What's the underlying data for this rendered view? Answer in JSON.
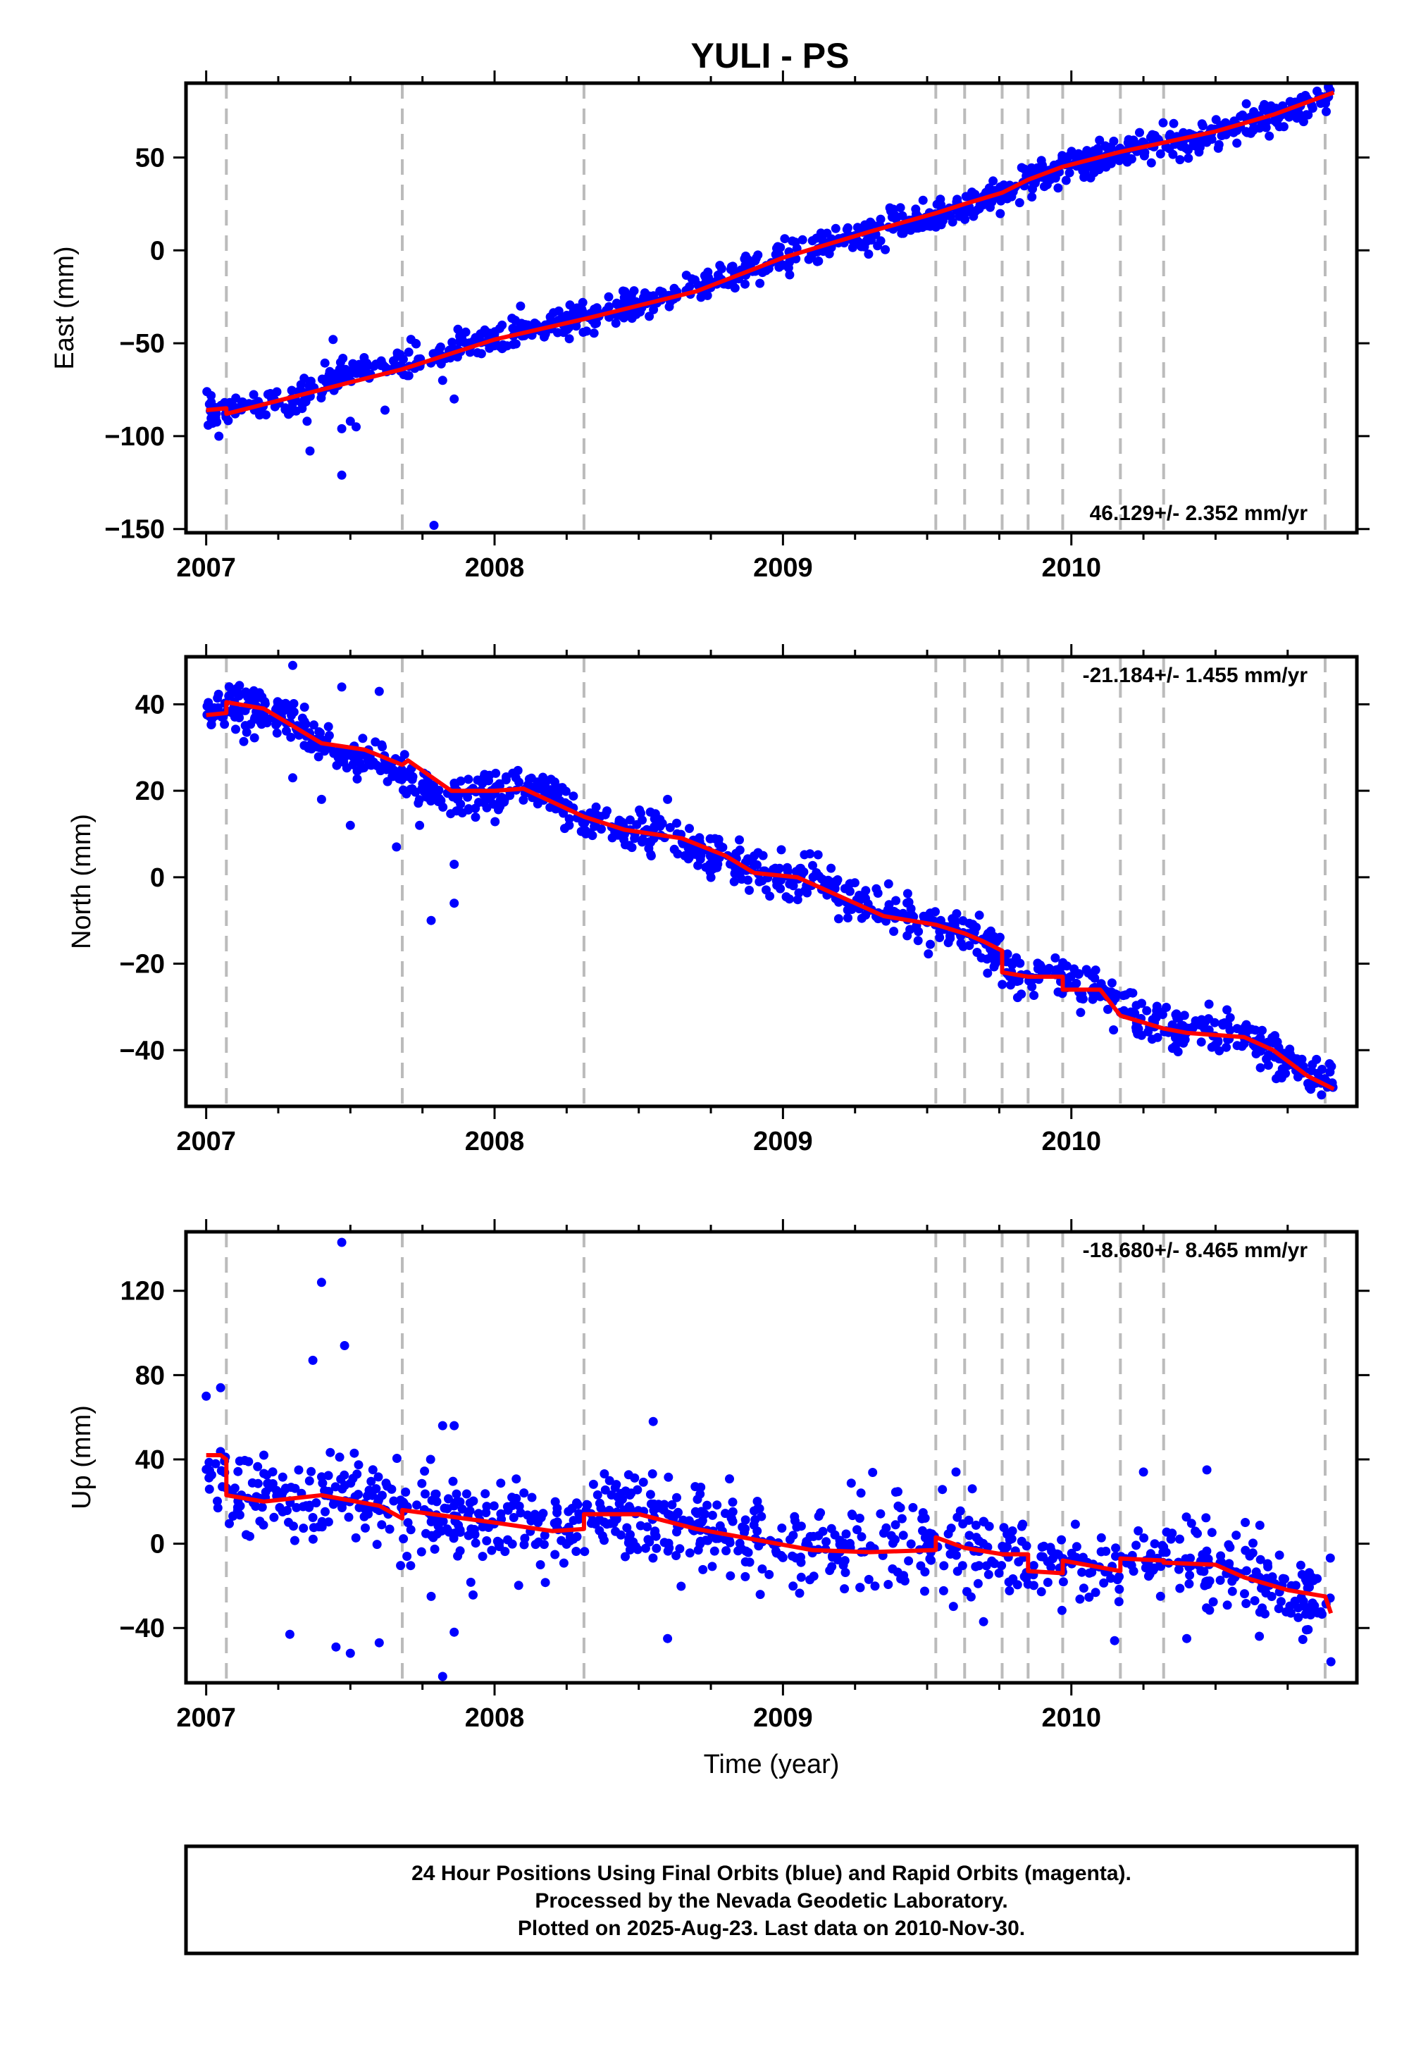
{
  "title": "YULI - PS",
  "footer": {
    "line1": "24 Hour Positions Using Final Orbits (blue) and Rapid Orbits (magenta).",
    "line2": "Processed by the Nevada Geodetic Laboratory.",
    "line3": "Plotted on 2025-Aug-23. Last data on 2010-Nov-30."
  },
  "colors": {
    "points": "#0000ff",
    "model": "#ff0000",
    "steps": "#bbbbbb",
    "frame": "#000000"
  },
  "chart_data": [
    {
      "type": "scatter",
      "ylabel": "East (mm)",
      "xlabel": "",
      "rate": "46.129+/- 2.352 mm/yr",
      "rate_position": "bottom-right",
      "xlim": [
        2006.93,
        2010.99
      ],
      "ylim": [
        -152,
        90
      ],
      "yticks": [
        -150,
        -100,
        -50,
        0,
        50
      ],
      "ytick_labels": [
        "−150",
        "−100",
        "−50",
        "0",
        "50"
      ],
      "xticks": [
        2007,
        2008,
        2009,
        2010
      ],
      "xtick_labels": [
        "2007",
        "2008",
        "2009",
        "2010"
      ],
      "steps": [
        2007.07,
        2007.68,
        2008.31,
        2009.53,
        2009.63,
        2009.76,
        2009.85,
        2009.97,
        2010.17,
        2010.32,
        2010.88
      ],
      "model": [
        [
          2007.0,
          -86
        ],
        [
          2007.07,
          -85
        ],
        [
          2007.07,
          -88
        ],
        [
          2007.5,
          -71
        ],
        [
          2007.68,
          -64
        ],
        [
          2008.0,
          -48
        ],
        [
          2008.31,
          -37
        ],
        [
          2008.7,
          -22
        ],
        [
          2009.0,
          -4
        ],
        [
          2009.3,
          10
        ],
        [
          2009.53,
          20
        ],
        [
          2009.63,
          25
        ],
        [
          2009.76,
          31
        ],
        [
          2009.85,
          38
        ],
        [
          2009.97,
          45
        ],
        [
          2010.17,
          53
        ],
        [
          2010.32,
          58
        ],
        [
          2010.5,
          64
        ],
        [
          2010.7,
          73
        ],
        [
          2010.91,
          85
        ]
      ],
      "points": {
        "dense": [
          [
            2007.0,
            -87
          ],
          [
            2007.05,
            -86
          ],
          [
            2007.1,
            -85
          ],
          [
            2007.2,
            -84
          ],
          [
            2007.3,
            -80
          ],
          [
            2007.4,
            -74
          ],
          [
            2007.5,
            -65
          ],
          [
            2007.6,
            -63
          ],
          [
            2007.7,
            -61
          ],
          [
            2007.85,
            -54
          ],
          [
            2008.0,
            -48
          ],
          [
            2008.2,
            -40
          ],
          [
            2008.4,
            -33
          ],
          [
            2008.6,
            -26
          ],
          [
            2008.8,
            -14
          ],
          [
            2009.0,
            -4
          ],
          [
            2009.2,
            5
          ],
          [
            2009.4,
            14
          ],
          [
            2009.6,
            22
          ],
          [
            2009.8,
            34
          ],
          [
            2010.0,
            46
          ],
          [
            2010.2,
            54
          ],
          [
            2010.4,
            60
          ],
          [
            2010.6,
            67
          ],
          [
            2010.8,
            78
          ],
          [
            2010.9,
            84
          ]
        ],
        "spread": 4,
        "count": 1000,
        "outliers": [
          [
            2007.47,
            -121
          ],
          [
            2007.36,
            -108
          ],
          [
            2007.35,
            -92
          ],
          [
            2007.47,
            -96
          ],
          [
            2007.52,
            -95
          ],
          [
            2007.44,
            -48
          ],
          [
            2007.79,
            -148
          ],
          [
            2007.86,
            -80
          ],
          [
            2007.82,
            -70
          ],
          [
            2007.74,
            -60
          ],
          [
            2007.9,
            -44
          ],
          [
            2008.09,
            -30
          ],
          [
            2007.62,
            -86
          ],
          [
            2007.5,
            -92
          ]
        ]
      }
    },
    {
      "type": "scatter",
      "ylabel": "North (mm)",
      "xlabel": "",
      "rate": "-21.184+/- 1.455 mm/yr",
      "rate_position": "top-right",
      "xlim": [
        2006.93,
        2010.99
      ],
      "ylim": [
        -53,
        51
      ],
      "yticks": [
        -40,
        -20,
        0,
        20,
        40
      ],
      "ytick_labels": [
        "−40",
        "−20",
        "0",
        "20",
        "40"
      ],
      "xticks": [
        2007,
        2008,
        2009,
        2010
      ],
      "xtick_labels": [
        "2007",
        "2008",
        "2009",
        "2010"
      ],
      "steps": [
        2007.07,
        2007.68,
        2008.31,
        2009.53,
        2009.63,
        2009.76,
        2009.85,
        2009.97,
        2010.17,
        2010.32,
        2010.88
      ],
      "model": [
        [
          2007.0,
          37.5
        ],
        [
          2007.07,
          38
        ],
        [
          2007.07,
          40.5
        ],
        [
          2007.2,
          39
        ],
        [
          2007.4,
          31
        ],
        [
          2007.55,
          29.5
        ],
        [
          2007.68,
          26
        ],
        [
          2007.7,
          27
        ],
        [
          2007.85,
          20
        ],
        [
          2008.0,
          20
        ],
        [
          2008.1,
          20.5
        ],
        [
          2008.31,
          14
        ],
        [
          2008.45,
          11
        ],
        [
          2008.65,
          9
        ],
        [
          2008.8,
          5
        ],
        [
          2008.9,
          1
        ],
        [
          2009.05,
          0
        ],
        [
          2009.25,
          -6
        ],
        [
          2009.35,
          -9
        ],
        [
          2009.53,
          -11
        ],
        [
          2009.63,
          -13
        ],
        [
          2009.7,
          -15
        ],
        [
          2009.76,
          -17
        ],
        [
          2009.76,
          -22
        ],
        [
          2009.85,
          -23
        ],
        [
          2009.85,
          -23
        ],
        [
          2009.97,
          -23
        ],
        [
          2009.97,
          -26
        ],
        [
          2010.1,
          -26
        ],
        [
          2010.17,
          -32
        ],
        [
          2010.32,
          -35
        ],
        [
          2010.4,
          -36
        ],
        [
          2010.6,
          -37
        ],
        [
          2010.7,
          -40
        ],
        [
          2010.82,
          -46
        ],
        [
          2010.88,
          -48
        ],
        [
          2010.91,
          -49
        ]
      ],
      "points": {
        "dense": [
          [
            2007.0,
            38
          ],
          [
            2007.1,
            40
          ],
          [
            2007.2,
            39
          ],
          [
            2007.3,
            36
          ],
          [
            2007.4,
            30
          ],
          [
            2007.5,
            28
          ],
          [
            2007.6,
            27
          ],
          [
            2007.85,
            18
          ],
          [
            2008.0,
            19
          ],
          [
            2008.1,
            21
          ],
          [
            2008.2,
            18
          ],
          [
            2008.3,
            14
          ],
          [
            2008.4,
            11
          ],
          [
            2008.6,
            9
          ],
          [
            2008.8,
            4
          ],
          [
            2009.0,
            0
          ],
          [
            2009.1,
            0
          ],
          [
            2009.25,
            -6
          ],
          [
            2009.4,
            -9
          ],
          [
            2009.55,
            -11
          ],
          [
            2009.7,
            -15
          ],
          [
            2009.8,
            -22
          ],
          [
            2009.9,
            -22
          ],
          [
            2010.0,
            -25
          ],
          [
            2010.1,
            -26
          ],
          [
            2010.2,
            -32
          ],
          [
            2010.35,
            -35
          ],
          [
            2010.5,
            -36
          ],
          [
            2010.65,
            -38
          ],
          [
            2010.75,
            -43
          ],
          [
            2010.85,
            -47
          ],
          [
            2010.91,
            -49
          ]
        ],
        "spread": 2.5,
        "count": 1000,
        "outliers": [
          [
            2007.78,
            -10
          ],
          [
            2007.66,
            7
          ],
          [
            2007.86,
            -6
          ],
          [
            2007.86,
            3
          ],
          [
            2007.74,
            12
          ],
          [
            2007.5,
            12
          ],
          [
            2007.3,
            23
          ],
          [
            2007.4,
            18
          ],
          [
            2007.3,
            49
          ],
          [
            2007.6,
            43
          ],
          [
            2007.47,
            44
          ],
          [
            2008.6,
            18
          ]
        ]
      }
    },
    {
      "type": "scatter",
      "ylabel": "Up (mm)",
      "xlabel": "Time (year)",
      "rate": "-18.680+/- 8.465 mm/yr",
      "rate_position": "top-right",
      "xlim": [
        2006.93,
        2010.99
      ],
      "ylim": [
        -66,
        148
      ],
      "yticks": [
        -40,
        0,
        40,
        80,
        120
      ],
      "ytick_labels": [
        "−40",
        "0",
        "40",
        "80",
        "120"
      ],
      "xticks": [
        2007,
        2008,
        2009,
        2010
      ],
      "xtick_labels": [
        "2007",
        "2008",
        "2009",
        "2010"
      ],
      "steps": [
        2007.07,
        2007.68,
        2008.31,
        2009.53,
        2009.63,
        2009.76,
        2009.85,
        2009.97,
        2010.17,
        2010.32,
        2010.88
      ],
      "model": [
        [
          2007.0,
          42
        ],
        [
          2007.05,
          42
        ],
        [
          2007.07,
          40
        ],
        [
          2007.07,
          23
        ],
        [
          2007.2,
          20
        ],
        [
          2007.4,
          23
        ],
        [
          2007.6,
          18
        ],
        [
          2007.68,
          12
        ],
        [
          2007.68,
          16
        ],
        [
          2008.0,
          10
        ],
        [
          2008.2,
          6
        ],
        [
          2008.31,
          7
        ],
        [
          2008.31,
          14
        ],
        [
          2008.5,
          14
        ],
        [
          2008.7,
          7
        ],
        [
          2008.9,
          2
        ],
        [
          2009.1,
          -3
        ],
        [
          2009.3,
          -4
        ],
        [
          2009.53,
          -3
        ],
        [
          2009.53,
          3
        ],
        [
          2009.63,
          -2
        ],
        [
          2009.76,
          -5
        ],
        [
          2009.85,
          -5
        ],
        [
          2009.85,
          -13
        ],
        [
          2009.97,
          -14
        ],
        [
          2009.97,
          -8
        ],
        [
          2010.17,
          -13
        ],
        [
          2010.17,
          -7
        ],
        [
          2010.32,
          -8
        ],
        [
          2010.32,
          -9
        ],
        [
          2010.5,
          -10
        ],
        [
          2010.6,
          -16
        ],
        [
          2010.75,
          -22
        ],
        [
          2010.88,
          -25
        ],
        [
          2010.9,
          -33
        ]
      ],
      "points": {
        "dense": [
          [
            2007.0,
            40
          ],
          [
            2007.05,
            35
          ],
          [
            2007.1,
            22
          ],
          [
            2007.3,
            20
          ],
          [
            2007.45,
            25
          ],
          [
            2007.6,
            18
          ],
          [
            2007.8,
            12
          ],
          [
            2008.0,
            8
          ],
          [
            2008.2,
            5
          ],
          [
            2008.35,
            15
          ],
          [
            2008.5,
            15
          ],
          [
            2008.7,
            8
          ],
          [
            2008.9,
            2
          ],
          [
            2009.1,
            -4
          ],
          [
            2009.3,
            -2
          ],
          [
            2009.55,
            2
          ],
          [
            2009.7,
            -4
          ],
          [
            2009.9,
            -12
          ],
          [
            2010.05,
            -9
          ],
          [
            2010.25,
            -8
          ],
          [
            2010.45,
            -8
          ],
          [
            2010.6,
            -15
          ],
          [
            2010.75,
            -22
          ],
          [
            2010.9,
            -28
          ]
        ],
        "spread": 10,
        "count": 900,
        "outliers": [
          [
            2007.47,
            143
          ],
          [
            2007.4,
            124
          ],
          [
            2007.48,
            94
          ],
          [
            2007.37,
            87
          ],
          [
            2007.0,
            70
          ],
          [
            2007.05,
            74
          ],
          [
            2007.2,
            42
          ],
          [
            2007.29,
            -43
          ],
          [
            2007.45,
            -49
          ],
          [
            2007.5,
            -52
          ],
          [
            2007.6,
            -47
          ],
          [
            2007.82,
            -63
          ],
          [
            2007.86,
            -42
          ],
          [
            2007.78,
            -25
          ],
          [
            2007.82,
            56
          ],
          [
            2007.86,
            56
          ],
          [
            2008.06,
            22
          ],
          [
            2008.55,
            58
          ],
          [
            2008.6,
            -45
          ],
          [
            2009.6,
            34
          ],
          [
            2010.25,
            34
          ],
          [
            2010.47,
            35
          ],
          [
            2010.4,
            -45
          ],
          [
            2010.9,
            -56
          ],
          [
            2010.15,
            -46
          ]
        ]
      }
    }
  ]
}
